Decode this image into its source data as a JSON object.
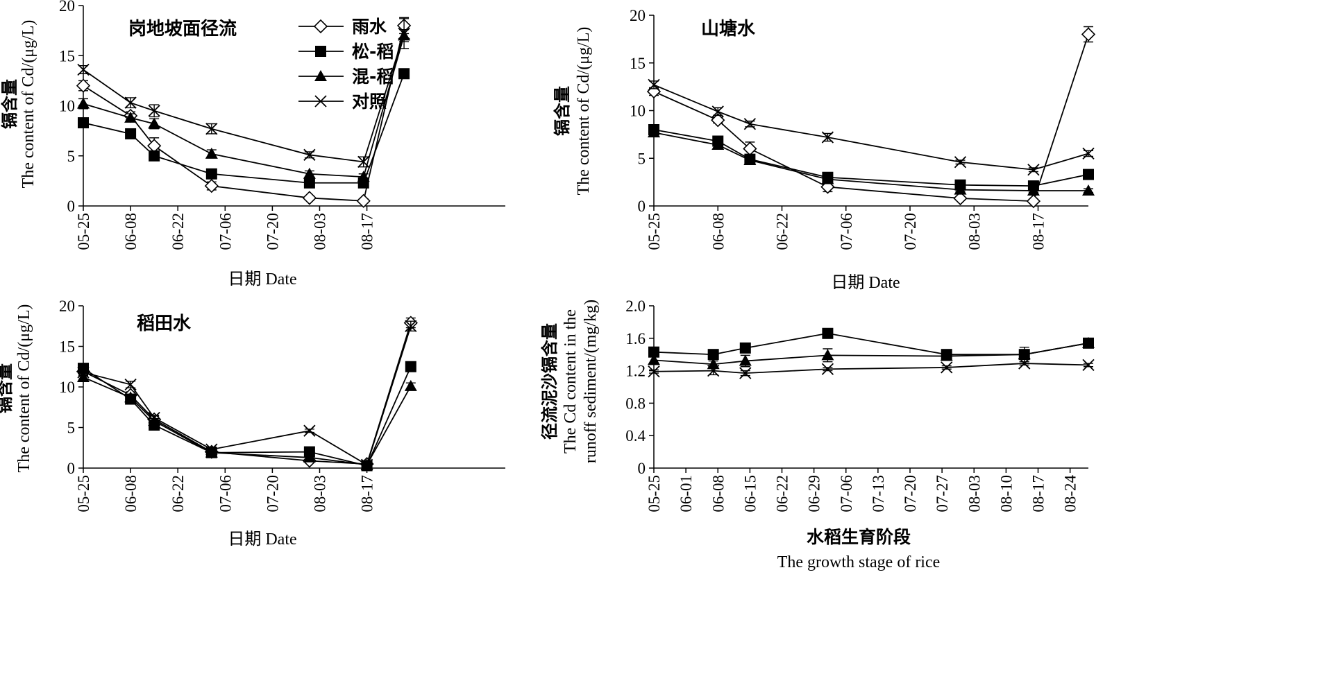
{
  "chart_data": [
    {
      "type": "line",
      "title": "岗地坡面径流",
      "ylabel_cn": "镉含量",
      "ylabel_en": "The content of  Cd/(μg/L)",
      "xlabel": "日期 Date",
      "ylim": [
        0,
        20
      ],
      "yticks": [
        "0",
        "5",
        "10",
        "15",
        "20"
      ],
      "xlim": [
        0,
        125
      ],
      "xticks": [
        {
          "v": 0,
          "label": "05-25"
        },
        {
          "v": 14,
          "label": "06-08"
        },
        {
          "v": 28,
          "label": "06-22"
        },
        {
          "v": 42,
          "label": "07-06"
        },
        {
          "v": 56,
          "label": "07-20"
        },
        {
          "v": 70,
          "label": "08-03"
        },
        {
          "v": 84,
          "label": "08-17"
        }
      ],
      "series": [
        {
          "name": "雨水",
          "marker": "diamond",
          "x": [
            0,
            14,
            21,
            38,
            67,
            83,
            95
          ],
          "values": [
            12,
            9,
            6,
            2,
            0.8,
            0.5,
            18
          ],
          "err": [
            0.5,
            0.4,
            0.8,
            0.4,
            0.2,
            0.2,
            0.8
          ]
        },
        {
          "name": "松-稻",
          "marker": "square",
          "x": [
            0,
            14,
            21,
            38,
            67,
            83,
            95
          ],
          "values": [
            8.3,
            7.2,
            5.0,
            3.2,
            2.3,
            2.3,
            13.2
          ],
          "err": [
            0.4,
            0.4,
            0.4,
            0.3,
            0.3,
            0.3,
            0.4
          ]
        },
        {
          "name": "混-稻",
          "marker": "triangle",
          "x": [
            0,
            14,
            21,
            38,
            67,
            83,
            95
          ],
          "values": [
            10.2,
            8.8,
            8.2,
            5.2,
            3.2,
            2.9,
            17.0
          ],
          "err": [
            0.5,
            0.4,
            0.5,
            0.4,
            0.3,
            0.3,
            0.6
          ]
        },
        {
          "name": "对照",
          "marker": "x",
          "x": [
            0,
            14,
            21,
            38,
            67,
            83,
            95
          ],
          "values": [
            13.6,
            10.3,
            9.5,
            7.7,
            5.1,
            4.4,
            17.2
          ],
          "err": [
            0.4,
            0.5,
            0.6,
            0.5,
            0.3,
            0.5,
            1.5
          ]
        }
      ],
      "legend": {
        "position": "top-center",
        "items": [
          "雨水",
          "松-稻",
          "混-稻",
          "对照"
        ]
      }
    },
    {
      "type": "line",
      "title": "山塘水",
      "ylabel_cn": "镉含量",
      "ylabel_en": "The content of  Cd/(μg/L)",
      "xlabel": "日期 Date",
      "ylim": [
        0,
        20
      ],
      "yticks": [
        "0",
        "5",
        "10",
        "15",
        "20"
      ],
      "xlim": [
        0,
        95
      ],
      "xticks": [
        {
          "v": 0,
          "label": "05-25"
        },
        {
          "v": 14,
          "label": "06-08"
        },
        {
          "v": 28,
          "label": "06-22"
        },
        {
          "v": 42,
          "label": "07-06"
        },
        {
          "v": 56,
          "label": "07-20"
        },
        {
          "v": 70,
          "label": "08-03"
        },
        {
          "v": 84,
          "label": "08-17"
        }
      ],
      "series": [
        {
          "name": "雨水",
          "marker": "diamond",
          "x": [
            0,
            14,
            21,
            38,
            67,
            83,
            95
          ],
          "values": [
            12,
            9,
            6,
            2,
            0.8,
            0.5,
            18
          ],
          "err": [
            0.4,
            0.3,
            0.7,
            0.5,
            0.2,
            0.2,
            0.8
          ]
        },
        {
          "name": "松-稻",
          "marker": "square",
          "x": [
            0,
            14,
            21,
            38,
            67,
            83,
            95
          ],
          "values": [
            8,
            6.8,
            4.9,
            3.0,
            2.2,
            2.1,
            3.3
          ],
          "err": [
            0.3,
            0.4,
            0.3,
            0.3,
            0.2,
            0.2,
            0.3
          ]
        },
        {
          "name": "混-稻",
          "marker": "triangle",
          "x": [
            0,
            14,
            21,
            38,
            67,
            83,
            95
          ],
          "values": [
            7.7,
            6.4,
            4.8,
            2.8,
            1.7,
            1.6,
            1.6
          ],
          "err": [
            0.3,
            0.3,
            0.3,
            0.3,
            0.2,
            0.2,
            0.2
          ]
        },
        {
          "name": "对照",
          "marker": "x",
          "x": [
            0,
            14,
            21,
            38,
            67,
            83,
            95
          ],
          "values": [
            12.7,
            9.9,
            8.6,
            7.2,
            4.6,
            3.8,
            5.5
          ],
          "err": [
            0.4,
            0.4,
            0.3,
            0.4,
            0.2,
            0.2,
            0.3
          ]
        }
      ]
    },
    {
      "type": "line",
      "title": "稻田水",
      "ylabel_cn": "镉含量",
      "ylabel_en": "The content of  Cd/(μg/L)",
      "xlabel": "日期 Date",
      "ylim": [
        0,
        20
      ],
      "yticks": [
        "0",
        "5",
        "10",
        "15",
        "20"
      ],
      "xlim": [
        0,
        125
      ],
      "xticks": [
        {
          "v": 0,
          "label": "05-25"
        },
        {
          "v": 14,
          "label": "06-08"
        },
        {
          "v": 28,
          "label": "06-22"
        },
        {
          "v": 42,
          "label": "07-06"
        },
        {
          "v": 56,
          "label": "07-20"
        },
        {
          "v": 70,
          "label": "08-03"
        },
        {
          "v": 84,
          "label": "08-17"
        }
      ],
      "series": [
        {
          "name": "雨水",
          "marker": "diamond",
          "x": [
            0,
            14,
            21,
            38,
            67,
            84,
            97
          ],
          "values": [
            11.9,
            9.0,
            6.0,
            2.0,
            0.9,
            0.5,
            17.9
          ],
          "err": [
            0.4,
            0.4,
            0.4,
            0.3,
            0.2,
            0.2,
            0.6
          ]
        },
        {
          "name": "松-稻",
          "marker": "square",
          "x": [
            0,
            14,
            21,
            38,
            67,
            84,
            97
          ],
          "values": [
            12.3,
            8.5,
            5.3,
            1.9,
            2.0,
            0.3,
            12.5
          ],
          "err": [
            0.4,
            0.4,
            0.3,
            0.3,
            0.2,
            0.2,
            0.5
          ]
        },
        {
          "name": "混-稻",
          "marker": "triangle",
          "x": [
            0,
            14,
            21,
            38,
            67,
            84,
            97
          ],
          "values": [
            11.2,
            8.7,
            5.8,
            1.9,
            1.3,
            0.4,
            10.1
          ],
          "err": [
            0.3,
            0.3,
            0.3,
            0.2,
            0.2,
            0.2,
            0.4
          ]
        },
        {
          "name": "对照",
          "marker": "x",
          "x": [
            0,
            14,
            21,
            38,
            67,
            84,
            97
          ],
          "values": [
            11.8,
            10.3,
            6.2,
            2.3,
            4.6,
            0.4,
            17.5
          ],
          "err": [
            0.4,
            0.4,
            0.3,
            0.3,
            0.2,
            0.2,
            0.6
          ]
        }
      ]
    },
    {
      "type": "line",
      "ylabel_cn": "径流泥沙镉含量",
      "ylabel_en1": "The Cd content in the",
      "ylabel_en2": "runoff sediment/(mg/kg)",
      "xlabel_cn": "水稻生育阶段",
      "xlabel_en": "The growth stage of rice",
      "ylim": [
        0,
        2.0
      ],
      "yticks": [
        "0",
        "0.4",
        "0.8",
        "1.2",
        "1.6",
        "2.0"
      ],
      "xlim": [
        0,
        95
      ],
      "xticks": [
        {
          "v": 0,
          "label": "05-25"
        },
        {
          "v": 7,
          "label": "06-01"
        },
        {
          "v": 14,
          "label": "06-08"
        },
        {
          "v": 21,
          "label": "06-15"
        },
        {
          "v": 28,
          "label": "06-22"
        },
        {
          "v": 35,
          "label": "06-29"
        },
        {
          "v": 42,
          "label": "07-06"
        },
        {
          "v": 49,
          "label": "07-13"
        },
        {
          "v": 56,
          "label": "07-20"
        },
        {
          "v": 63,
          "label": "07-27"
        },
        {
          "v": 70,
          "label": "08-03"
        },
        {
          "v": 77,
          "label": "08-10"
        },
        {
          "v": 84,
          "label": "08-17"
        },
        {
          "v": 91,
          "label": "08-24"
        }
      ],
      "series": [
        {
          "name": "松-稻",
          "marker": "square",
          "x": [
            0,
            13,
            20,
            38,
            64,
            81,
            95
          ],
          "values": [
            1.43,
            1.4,
            1.48,
            1.66,
            1.4,
            1.4,
            1.54
          ],
          "err": [
            0.06,
            0.05,
            0.04,
            0.05,
            0.04,
            0.05,
            0.03
          ]
        },
        {
          "name": "混-稻",
          "marker": "triangle",
          "x": [
            0,
            13,
            20,
            38,
            64,
            81,
            95
          ],
          "values": [
            1.33,
            1.28,
            1.32,
            1.39,
            1.38,
            1.4,
            1.54
          ],
          "err": [
            0.04,
            0.04,
            0.07,
            0.08,
            0.03,
            0.09,
            0.03
          ]
        },
        {
          "name": "对照",
          "marker": "x",
          "x": [
            0,
            13,
            20,
            38,
            64,
            81,
            95
          ],
          "values": [
            1.19,
            1.2,
            1.17,
            1.22,
            1.24,
            1.29,
            1.27
          ],
          "err": [
            0.02,
            0.05,
            0.03,
            0.02,
            0.02,
            0.02,
            0.02
          ]
        }
      ]
    }
  ]
}
